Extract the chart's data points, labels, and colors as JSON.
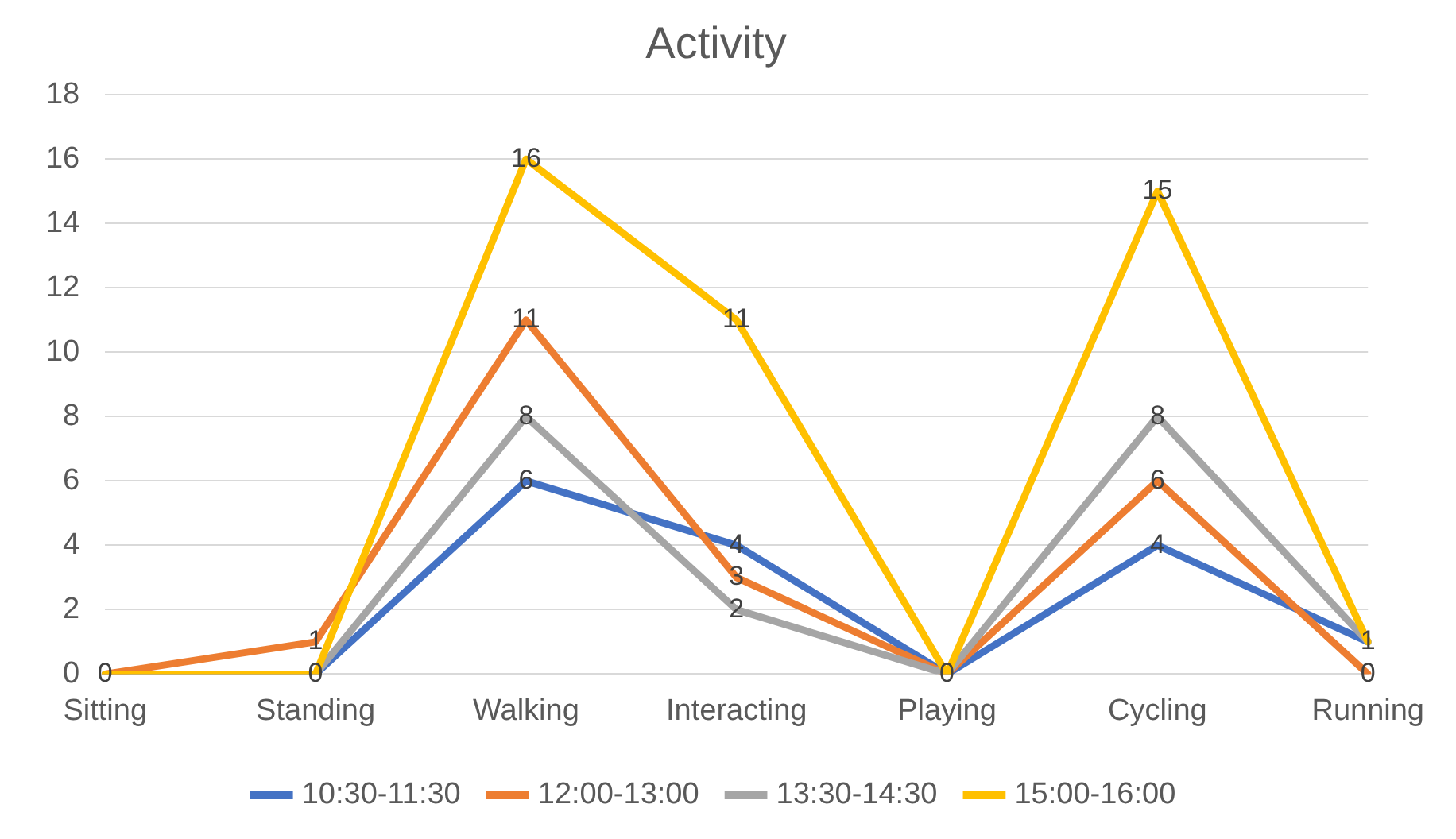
{
  "chart_data": {
    "type": "line",
    "title": "Activity",
    "categories": [
      "Sitting",
      "Standing",
      "Walking",
      "Interacting",
      "Playing",
      "Cycling",
      "Running"
    ],
    "series": [
      {
        "name": "10:30-11:30",
        "color": "#4472c4",
        "values": [
          0,
          0,
          6,
          4,
          0,
          4,
          1
        ],
        "value_labels": [
          "0",
          "0",
          "6",
          "4",
          "0",
          "4",
          "1"
        ]
      },
      {
        "name": "12:00-13:00",
        "color": "#ed7d31",
        "values": [
          0,
          1,
          11,
          3,
          0,
          6,
          0
        ],
        "value_labels": [
          null,
          "1",
          "11",
          "3",
          null,
          "6",
          "0"
        ]
      },
      {
        "name": "13:30-14:30",
        "color": "#a5a5a5",
        "values": [
          0,
          0,
          8,
          2,
          0,
          8,
          1
        ],
        "value_labels": [
          null,
          null,
          "8",
          "2",
          null,
          "8",
          null
        ]
      },
      {
        "name": "15:00-16:00",
        "color": "#ffc000",
        "values": [
          0,
          0,
          16,
          11,
          0,
          15,
          1
        ],
        "value_labels": [
          null,
          null,
          "16",
          "11",
          null,
          "15",
          null
        ]
      }
    ],
    "ylim": [
      0,
      18
    ],
    "yticks": [
      0,
      2,
      4,
      6,
      8,
      10,
      12,
      14,
      16,
      18
    ],
    "grid": "y",
    "legend": "bottom",
    "marker": "none",
    "line_style": "solid"
  }
}
